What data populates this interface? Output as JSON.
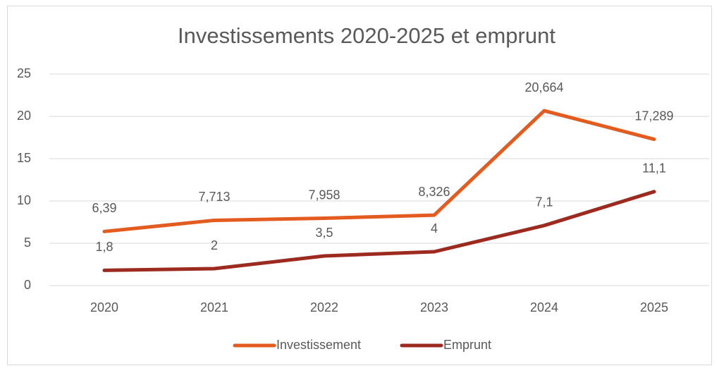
{
  "chart_data": {
    "type": "line",
    "title": "Investissements 2020-2025 et emprunt",
    "categories": [
      "2020",
      "2021",
      "2022",
      "2023",
      "2024",
      "2025"
    ],
    "series": [
      {
        "name": "Investissement",
        "color": "#e35b1e",
        "values": [
          6.39,
          7.713,
          7.958,
          8.326,
          20.664,
          17.289
        ],
        "value_labels": [
          "6,39",
          "7,713",
          "7,958",
          "8,326",
          "20,664",
          "17,289"
        ]
      },
      {
        "name": "Emprunt",
        "color": "#9c2a1f",
        "values": [
          1.8,
          2,
          3.5,
          4,
          7.1,
          11.1
        ],
        "value_labels": [
          "1,8",
          "2",
          "3,5",
          "4",
          "7,1",
          "11,1"
        ]
      }
    ],
    "ylim": [
      0,
      25
    ],
    "yticks": [
      0,
      5,
      10,
      15,
      20,
      25
    ],
    "grid": true,
    "legend": "bottom"
  }
}
